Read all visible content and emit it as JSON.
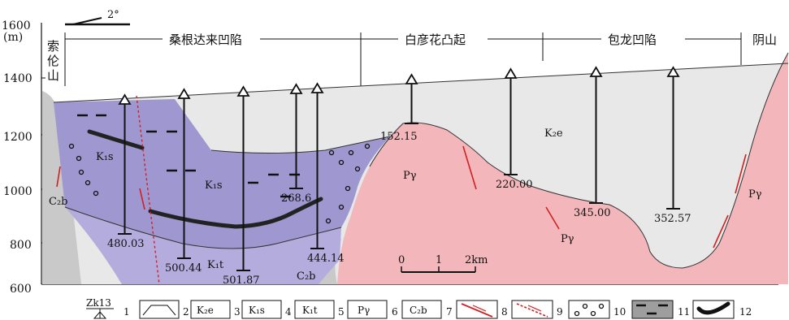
{
  "axis": {
    "top_label": "1600",
    "unit": "(m)",
    "ticks": [
      "1400",
      "1200",
      "1000",
      "800",
      "600"
    ]
  },
  "dip": "2°",
  "regions": {
    "suolunshan": [
      "索",
      "伦",
      "山"
    ],
    "sanggendalai": "桑根达来凹陷",
    "baiyanhua": "白彦花凸起",
    "baolong": "包龙凹陷",
    "yinshan": "阴山"
  },
  "strata": {
    "k2e": "K₂e",
    "k1s_a": "K₁s",
    "k1s_b": "K₁s",
    "k1t": "K₁t",
    "c2b_left": "C₂b",
    "c2b_bottom": "C₂b",
    "pg_a": "Pγ",
    "pg_b": "Pγ",
    "pg_c": "Pγ"
  },
  "boreholes": [
    {
      "id": "w1",
      "depth": "480.03"
    },
    {
      "id": "w2",
      "depth": "500.44"
    },
    {
      "id": "w3",
      "depth": "501.87"
    },
    {
      "id": "w4",
      "depth": "268.6"
    },
    {
      "id": "w5",
      "depth": "444.14"
    },
    {
      "id": "w6",
      "depth": "152.15"
    },
    {
      "id": "w7",
      "depth": "220.00"
    },
    {
      "id": "w8",
      "depth": "345.00"
    },
    {
      "id": "w9",
      "depth": "352.57"
    }
  ],
  "scale": {
    "labels": [
      "0",
      "1",
      "2km"
    ]
  },
  "legend": [
    {
      "num": "1",
      "label": "Zk13"
    },
    {
      "num": "2",
      "label": ""
    },
    {
      "num": "3",
      "label": "K₂e"
    },
    {
      "num": "4",
      "label": "K₁s"
    },
    {
      "num": "5",
      "label": "K₁t"
    },
    {
      "num": "6",
      "label": "Pγ"
    },
    {
      "num": "7",
      "label": "C₂b"
    },
    {
      "num": "8",
      "label": ""
    },
    {
      "num": "9",
      "label": ""
    },
    {
      "num": "10",
      "label": ""
    },
    {
      "num": "11",
      "label": ""
    },
    {
      "num": "12",
      "label": ""
    }
  ],
  "colors": {
    "k2e": "#e8e8e8",
    "k1s": "#9f97cf",
    "k1t": "#b3acdd",
    "pgamma": "#f3b7bb",
    "c2b": "#c9c9c9",
    "fault": "#d21f1f",
    "coal": "#222222"
  }
}
